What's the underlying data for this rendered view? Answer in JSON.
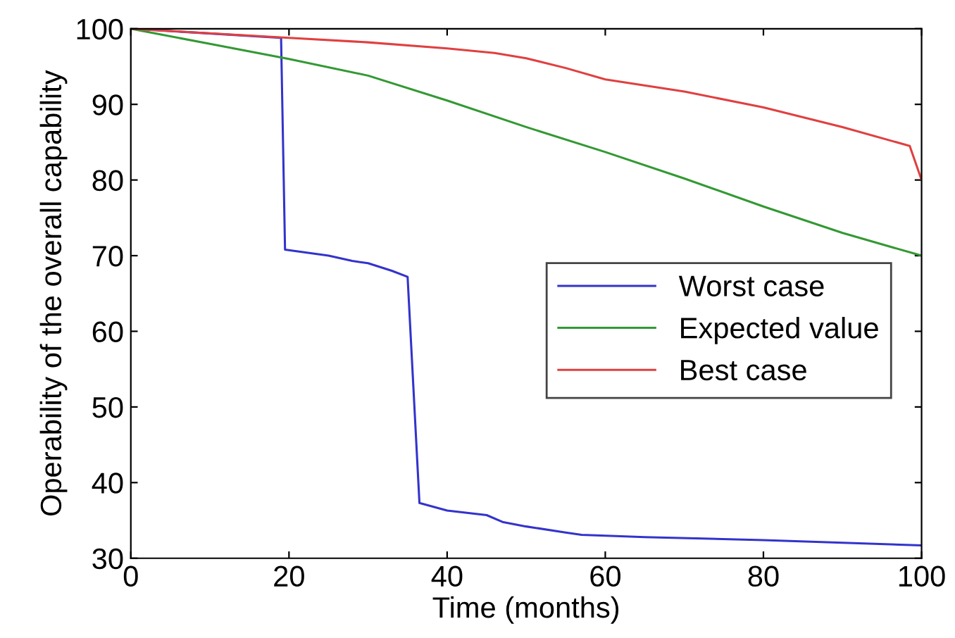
{
  "chart_data": {
    "type": "line",
    "xlabel": "Time (months)",
    "ylabel": "Operability of the overall capability",
    "xlim": [
      0,
      100
    ],
    "ylim": [
      30,
      100
    ],
    "xticks": [
      0,
      20,
      40,
      60,
      80,
      100
    ],
    "yticks": [
      30,
      40,
      50,
      60,
      70,
      80,
      90,
      100
    ],
    "grid": false,
    "legend": "center right",
    "marker": "none",
    "line_style": "solid",
    "series": [
      {
        "name": "Worst case",
        "color": "#3333cc",
        "x": [
          0,
          19,
          19.5,
          25,
          28,
          30,
          33,
          35,
          36.5,
          40,
          45,
          47,
          50,
          55,
          57,
          65,
          80,
          100
        ],
        "values": [
          100,
          98.8,
          70.8,
          70,
          69.3,
          69,
          68,
          67.2,
          37.3,
          36.3,
          35.7,
          34.8,
          34.2,
          33.4,
          33.1,
          32.8,
          32.4,
          31.7
        ]
      },
      {
        "name": "Expected value",
        "color": "#339933",
        "x": [
          0,
          10,
          20,
          30,
          40,
          50,
          60,
          70,
          80,
          90,
          100
        ],
        "values": [
          100,
          98,
          96,
          93.8,
          90.5,
          87,
          83.7,
          80.2,
          76.5,
          73,
          70
        ]
      },
      {
        "name": "Best case",
        "color": "#e04040",
        "x": [
          0,
          20,
          30,
          40,
          46,
          50,
          55,
          60,
          70,
          80,
          90,
          98.5,
          100
        ],
        "values": [
          100,
          98.8,
          98.2,
          97.4,
          96.8,
          96.1,
          94.8,
          93.3,
          91.7,
          89.6,
          87,
          84.5,
          80
        ]
      }
    ]
  }
}
